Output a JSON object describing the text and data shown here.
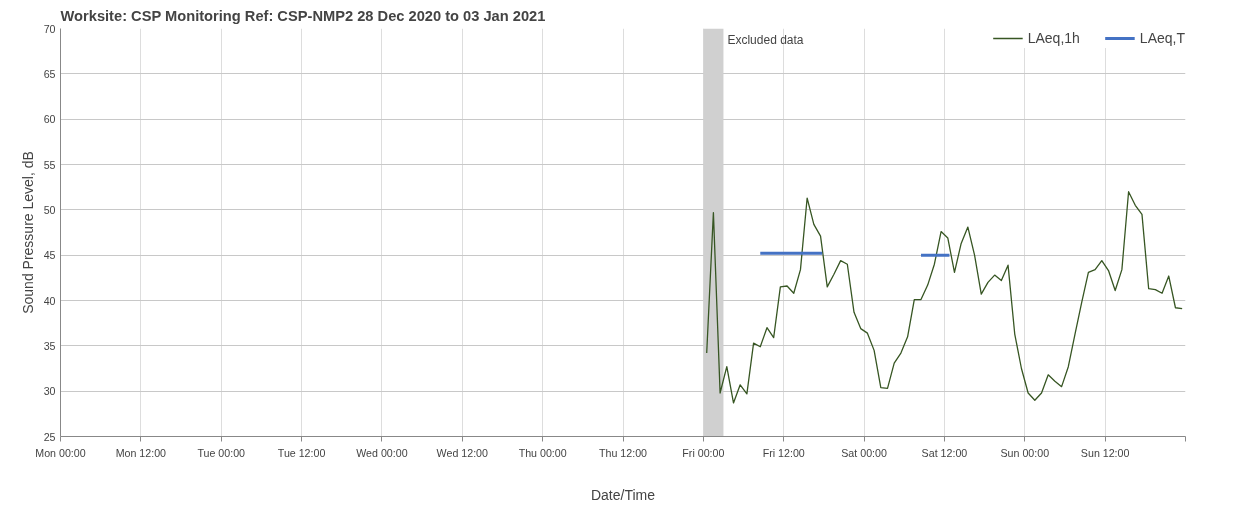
{
  "chart_data": {
    "type": "line",
    "title": "Worksite: CSP    Monitoring Ref: CSP-NMP2      28 Dec 2020 to 03 Jan 2021",
    "xlabel": "Date/Time",
    "ylabel": "Sound Pressure Level, dB",
    "xlim": [
      "2020-12-28T00:00",
      "2021-01-04T00:00"
    ],
    "ylim": [
      25,
      70
    ],
    "xticks": [
      {
        "value": "2020-12-28T00:00",
        "label": "Mon 00:00"
      },
      {
        "value": "2020-12-28T12:00",
        "label": "Mon 12:00"
      },
      {
        "value": "2020-12-29T00:00",
        "label": "Tue 00:00"
      },
      {
        "value": "2020-12-29T12:00",
        "label": "Tue 12:00"
      },
      {
        "value": "2020-12-30T00:00",
        "label": "Wed 00:00"
      },
      {
        "value": "2020-12-30T12:00",
        "label": "Wed 12:00"
      },
      {
        "value": "2020-12-31T00:00",
        "label": "Thu 00:00"
      },
      {
        "value": "2020-12-31T12:00",
        "label": "Thu 12:00"
      },
      {
        "value": "2021-01-01T00:00",
        "label": "Fri 00:00"
      },
      {
        "value": "2021-01-01T12:00",
        "label": "Fri 12:00"
      },
      {
        "value": "2021-01-02T00:00",
        "label": "Sat 00:00"
      },
      {
        "value": "2021-01-02T12:00",
        "label": "Sat 12:00"
      },
      {
        "value": "2021-01-03T00:00",
        "label": "Sun 00:00"
      },
      {
        "value": "2021-01-03T12:00",
        "label": "Sun 12:00"
      },
      {
        "value": "2021-01-04T00:00",
        "label": null
      }
    ],
    "yticks": [
      25,
      30,
      35,
      40,
      45,
      50,
      55,
      60,
      65,
      70
    ],
    "grid": true,
    "legend": "top right",
    "bands": [
      {
        "axis": "x",
        "from": "2021-01-01T00:00",
        "to": "2021-01-01T03:00",
        "label": "Excluded data",
        "color": "#d0d0d0"
      }
    ],
    "series": [
      {
        "name": "LAeq,1h",
        "color": "#375623",
        "x": [
          "2021-01-01T00:30",
          "2021-01-01T01:30",
          "2021-01-01T02:30",
          "2021-01-01T03:30",
          "2021-01-01T04:30",
          "2021-01-01T05:30",
          "2021-01-01T06:30",
          "2021-01-01T07:30",
          "2021-01-01T08:30",
          "2021-01-01T09:30",
          "2021-01-01T10:30",
          "2021-01-01T11:30",
          "2021-01-01T12:30",
          "2021-01-01T13:30",
          "2021-01-01T14:30",
          "2021-01-01T15:30",
          "2021-01-01T16:30",
          "2021-01-01T17:30",
          "2021-01-01T18:30",
          "2021-01-01T19:30",
          "2021-01-01T20:30",
          "2021-01-01T21:30",
          "2021-01-01T22:30",
          "2021-01-01T23:30",
          "2021-01-02T00:30",
          "2021-01-02T01:30",
          "2021-01-02T02:30",
          "2021-01-02T03:30",
          "2021-01-02T04:30",
          "2021-01-02T05:30",
          "2021-01-02T06:30",
          "2021-01-02T07:30",
          "2021-01-02T08:30",
          "2021-01-02T09:30",
          "2021-01-02T10:30",
          "2021-01-02T11:30",
          "2021-01-02T12:30",
          "2021-01-02T13:30",
          "2021-01-02T14:30",
          "2021-01-02T15:30",
          "2021-01-02T16:30",
          "2021-01-02T17:30",
          "2021-01-02T18:30",
          "2021-01-02T19:30",
          "2021-01-02T20:30",
          "2021-01-02T21:30",
          "2021-01-02T22:30",
          "2021-01-02T23:30",
          "2021-01-03T00:30",
          "2021-01-03T01:30",
          "2021-01-03T02:30",
          "2021-01-03T03:30",
          "2021-01-03T04:30",
          "2021-01-03T05:30",
          "2021-01-03T06:30",
          "2021-01-03T07:30",
          "2021-01-03T08:30",
          "2021-01-03T09:30",
          "2021-01-03T10:30",
          "2021-01-03T11:30",
          "2021-01-03T12:30",
          "2021-01-03T13:30",
          "2021-01-03T14:30",
          "2021-01-03T15:30",
          "2021-01-03T16:30",
          "2021-01-03T17:30",
          "2021-01-03T18:30",
          "2021-01-03T19:30",
          "2021-01-03T20:30",
          "2021-01-03T21:30",
          "2021-01-03T22:30",
          "2021-01-03T23:30"
        ],
        "values": [
          34.2,
          49.7,
          29.8,
          32.7,
          28.7,
          30.7,
          29.7,
          35.3,
          34.9,
          37.0,
          35.9,
          41.5,
          41.6,
          40.8,
          43.4,
          51.3,
          48.4,
          47.1,
          41.5,
          42.9,
          44.4,
          44.0,
          38.7,
          36.9,
          36.4,
          34.5,
          30.4,
          30.3,
          33.1,
          34.2,
          36.0,
          40.1,
          40.1,
          41.7,
          44.0,
          47.6,
          46.9,
          43.1,
          46.3,
          48.1,
          45.0,
          40.7,
          42.0,
          42.8,
          42.2,
          43.9,
          36.3,
          32.5,
          29.8,
          29.0,
          29.8,
          31.8,
          31.1,
          30.5,
          32.7,
          36.3,
          39.8,
          43.1,
          43.4,
          44.4,
          43.3,
          41.1,
          43.4,
          52.0,
          50.5,
          49.5,
          41.3,
          41.2,
          40.8,
          42.7,
          39.2,
          39.1
        ]
      },
      {
        "name": "LAeq,T",
        "color": "#4472c4",
        "x": [
          "2021-01-01T08:30",
          "2021-01-01T17:45",
          "2021-01-02T01:00",
          "2021-01-02T08:30",
          "2021-01-02T12:45"
        ],
        "values": [
          45.2,
          45.2,
          null,
          45.0,
          45.0
        ]
      }
    ]
  }
}
